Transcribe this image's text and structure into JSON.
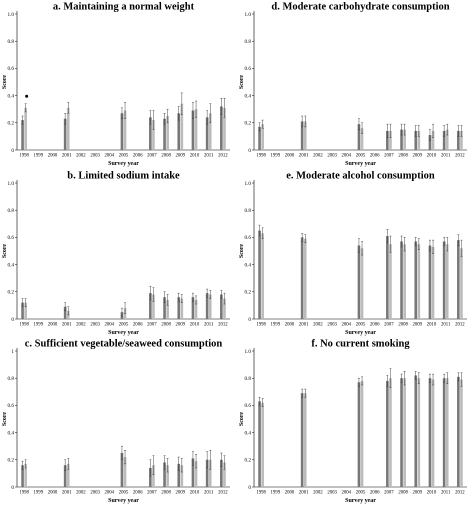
{
  "chart_data": [
    {
      "type": "bar",
      "title": "a. Maintaining a normal weight",
      "xlabel": "Survey year",
      "ylabel": "Score",
      "ylim": [
        0,
        1.0
      ],
      "yticks": [
        "0",
        "0.2",
        "0.4",
        "0.6",
        "0.8",
        "1.0"
      ],
      "categories": [
        "1998",
        "1999",
        "2000",
        "2001",
        "2002",
        "2003",
        "2004",
        "2005",
        "2006",
        "2007",
        "2008",
        "2009",
        "2010",
        "2011",
        "2012"
      ],
      "series": [
        {
          "values": [
            0.22,
            null,
            null,
            0.23,
            null,
            null,
            null,
            0.27,
            null,
            0.24,
            0.23,
            0.27,
            0.29,
            0.24,
            0.32
          ],
          "errors": [
            0.03,
            null,
            null,
            0.04,
            null,
            null,
            null,
            0.04,
            null,
            0.05,
            0.04,
            0.05,
            0.06,
            0.05,
            0.06
          ],
          "color": "#777777"
        },
        {
          "values": [
            0.31,
            null,
            null,
            0.31,
            null,
            null,
            null,
            0.29,
            null,
            0.22,
            0.25,
            0.34,
            0.3,
            0.27,
            0.31
          ],
          "errors": [
            0.03,
            null,
            null,
            0.04,
            null,
            null,
            null,
            0.06,
            null,
            0.07,
            0.05,
            0.08,
            0.06,
            0.07,
            0.07
          ],
          "color": "#bbbbbb"
        }
      ],
      "markers": [
        {
          "category": "1998",
          "y": 0.395
        }
      ]
    },
    {
      "type": "bar",
      "title": "d. Moderate carbohydrate consumption",
      "xlabel": "Survey year",
      "ylabel": "Score",
      "ylim": [
        0,
        1.0
      ],
      "yticks": [
        "0",
        "0.2",
        "0.4",
        "0.6",
        "0.8",
        "1.0"
      ],
      "categories": [
        "1998",
        "1999",
        "2000",
        "2001",
        "2002",
        "2003",
        "2004",
        "2005",
        "2006",
        "2007",
        "2008",
        "2009",
        "2010",
        "2011",
        "2012"
      ],
      "series": [
        {
          "values": [
            0.17,
            null,
            null,
            0.21,
            null,
            null,
            null,
            0.19,
            null,
            0.14,
            0.15,
            0.14,
            0.11,
            0.14,
            0.14
          ],
          "errors": [
            0.03,
            null,
            null,
            0.04,
            null,
            null,
            null,
            0.04,
            null,
            0.05,
            0.04,
            0.04,
            0.04,
            0.04,
            0.04
          ],
          "color": "#777777"
        },
        {
          "values": [
            0.19,
            null,
            null,
            0.21,
            null,
            null,
            null,
            0.16,
            null,
            0.14,
            0.15,
            0.14,
            0.14,
            0.15,
            0.14
          ],
          "errors": [
            0.03,
            null,
            null,
            0.04,
            null,
            null,
            null,
            0.04,
            null,
            0.05,
            0.04,
            0.04,
            0.05,
            0.04,
            0.04
          ],
          "color": "#bbbbbb"
        }
      ],
      "markers": []
    },
    {
      "type": "bar",
      "title": "b. Limited sodium intake",
      "xlabel": "Survey year",
      "ylabel": "Score",
      "ylim": [
        0,
        1.0
      ],
      "yticks": [
        "0",
        "0.2",
        "0.4",
        "0.6",
        "0.8",
        "1.0"
      ],
      "categories": [
        "1998",
        "1999",
        "2000",
        "2001",
        "2002",
        "2003",
        "2004",
        "2005",
        "2006",
        "2007",
        "2008",
        "2009",
        "2010",
        "2011",
        "2012"
      ],
      "series": [
        {
          "values": [
            0.12,
            null,
            null,
            0.09,
            null,
            null,
            null,
            0.05,
            null,
            0.19,
            0.16,
            0.16,
            0.16,
            0.19,
            0.18
          ],
          "errors": [
            0.03,
            null,
            null,
            0.03,
            null,
            null,
            null,
            0.03,
            null,
            0.05,
            0.04,
            0.03,
            0.03,
            0.03,
            0.03
          ],
          "color": "#777777"
        },
        {
          "values": [
            0.12,
            null,
            null,
            0.06,
            null,
            null,
            null,
            0.08,
            null,
            0.18,
            0.14,
            0.15,
            0.14,
            0.18,
            0.15
          ],
          "errors": [
            0.03,
            null,
            null,
            0.03,
            null,
            null,
            null,
            0.04,
            null,
            0.05,
            0.04,
            0.03,
            0.03,
            0.03,
            0.04
          ],
          "color": "#bbbbbb"
        }
      ],
      "markers": []
    },
    {
      "type": "bar",
      "title": "e. Moderate alcohol consumption",
      "xlabel": "Survey year",
      "ylabel": "Score",
      "ylim": [
        0,
        1.0
      ],
      "yticks": [
        "0",
        "0.2",
        "0.4",
        "0.6",
        "0.8",
        "1.0"
      ],
      "categories": [
        "1998",
        "1999",
        "2000",
        "2001",
        "2002",
        "2003",
        "2004",
        "2005",
        "2006",
        "2007",
        "2008",
        "2009",
        "2010",
        "2011",
        "2012"
      ],
      "series": [
        {
          "values": [
            0.65,
            null,
            null,
            0.6,
            null,
            null,
            null,
            0.54,
            null,
            0.61,
            0.57,
            0.57,
            0.54,
            0.57,
            0.58
          ],
          "errors": [
            0.04,
            null,
            null,
            0.03,
            null,
            null,
            null,
            0.05,
            null,
            0.05,
            0.04,
            0.03,
            0.04,
            0.03,
            0.04
          ],
          "color": "#777777"
        },
        {
          "values": [
            0.63,
            null,
            null,
            0.59,
            null,
            null,
            null,
            0.52,
            null,
            0.55,
            0.55,
            0.55,
            0.53,
            0.55,
            0.52
          ],
          "errors": [
            0.04,
            null,
            null,
            0.03,
            null,
            null,
            null,
            0.05,
            null,
            0.06,
            0.05,
            0.04,
            0.05,
            0.05,
            0.06
          ],
          "color": "#bbbbbb"
        }
      ],
      "markers": []
    },
    {
      "type": "bar",
      "title": "c. Sufficient vegetable/seaweed consumption",
      "xlabel": "Survey year",
      "ylabel": "Score",
      "ylim": [
        0,
        1.0
      ],
      "yticks": [
        "0",
        "0.2",
        "0.4",
        "0.6",
        "0.8",
        "1"
      ],
      "categories": [
        "1998",
        "1999",
        "2000",
        "2001",
        "2002",
        "2003",
        "2004",
        "2005",
        "2006",
        "2007",
        "2008",
        "2009",
        "2010",
        "2011",
        "2012"
      ],
      "series": [
        {
          "values": [
            0.16,
            null,
            null,
            0.16,
            null,
            null,
            null,
            0.25,
            null,
            0.14,
            0.18,
            0.17,
            0.21,
            0.2,
            0.2
          ],
          "errors": [
            0.03,
            null,
            null,
            0.04,
            null,
            null,
            null,
            0.05,
            null,
            0.06,
            0.05,
            0.05,
            0.05,
            0.06,
            0.05
          ],
          "color": "#777777"
        },
        {
          "values": [
            0.17,
            null,
            null,
            0.17,
            null,
            null,
            null,
            0.22,
            null,
            0.16,
            0.16,
            0.16,
            0.19,
            0.2,
            0.18
          ],
          "errors": [
            0.03,
            null,
            null,
            0.04,
            null,
            null,
            null,
            0.05,
            null,
            0.07,
            0.05,
            0.05,
            0.05,
            0.07,
            0.05
          ],
          "color": "#bbbbbb"
        }
      ],
      "markers": []
    },
    {
      "type": "bar",
      "title": "f. No current smoking",
      "xlabel": "Survey year",
      "ylabel": "Score",
      "ylim": [
        0,
        1.0
      ],
      "yticks": [
        "0",
        "0.2",
        "0.4",
        "0.6",
        "0.8",
        "1.0"
      ],
      "categories": [
        "1998",
        "1999",
        "2000",
        "2001",
        "2002",
        "2003",
        "2004",
        "2005",
        "2006",
        "2007",
        "2008",
        "2009",
        "2010",
        "2011",
        "2012"
      ],
      "series": [
        {
          "values": [
            0.63,
            null,
            null,
            0.69,
            null,
            null,
            null,
            0.77,
            null,
            0.78,
            0.8,
            0.82,
            0.8,
            0.8,
            0.81
          ],
          "errors": [
            0.03,
            null,
            null,
            0.03,
            null,
            null,
            null,
            0.03,
            null,
            0.04,
            0.03,
            0.03,
            0.03,
            0.03,
            0.03
          ],
          "color": "#777777"
        },
        {
          "values": [
            0.62,
            null,
            null,
            0.69,
            null,
            null,
            null,
            0.78,
            null,
            0.8,
            0.8,
            0.8,
            0.79,
            0.8,
            0.79
          ],
          "errors": [
            0.03,
            null,
            null,
            0.03,
            null,
            null,
            null,
            0.03,
            null,
            0.07,
            0.05,
            0.04,
            0.04,
            0.04,
            0.05
          ],
          "color": "#bbbbbb"
        }
      ],
      "markers": []
    }
  ]
}
